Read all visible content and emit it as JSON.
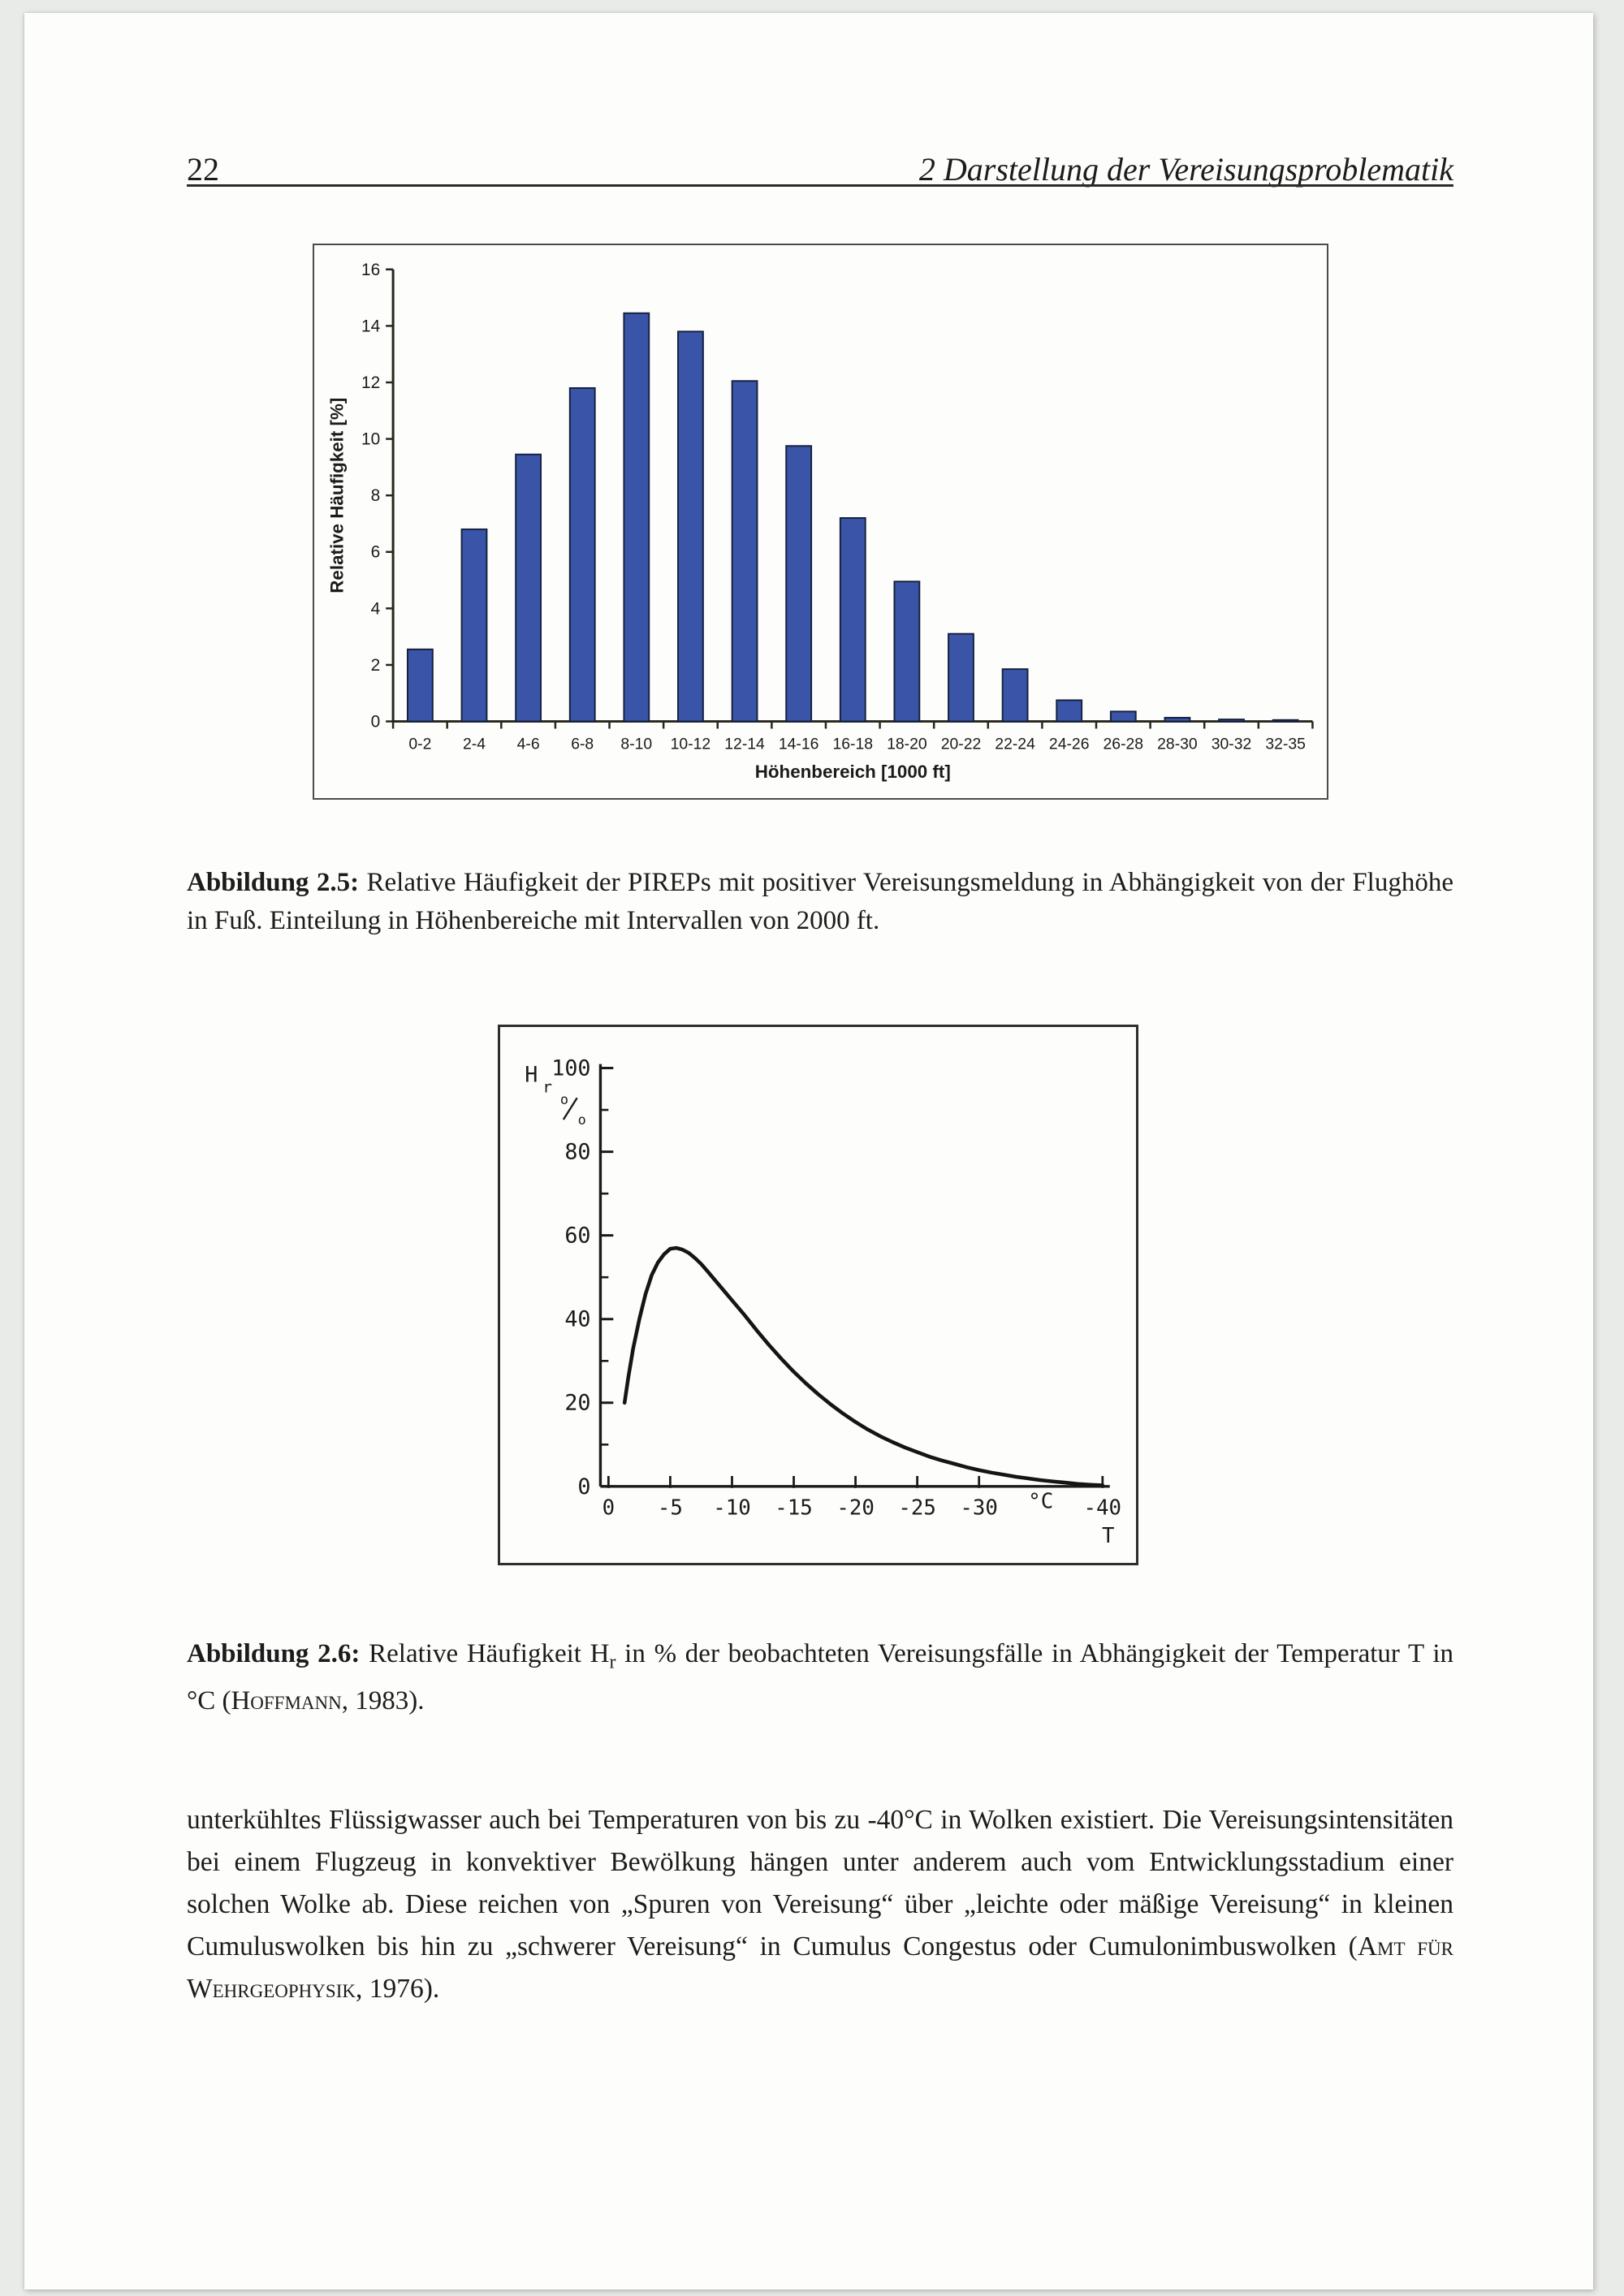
{
  "header": {
    "page_number": "22",
    "chapter_title": "2 Darstellung der Vereisungsproblematik"
  },
  "figures": {
    "fig25": {
      "label": "Abbildung 2.5:",
      "caption": "Relative Häufigkeit der PIREPs mit positiver Vereisungsmeldung in Abhängigkeit von der Flughöhe in Fuß. Einteilung in Höhenbereiche mit Intervallen von 2000 ft."
    },
    "fig26": {
      "label": "Abbildung 2.6:",
      "caption_pre": "Relative Häufigkeit H",
      "caption_sub": "r",
      "caption_mid": " in % der beobachteten Vereisungsfälle in Abhängigkeit der Temperatur T in °C (",
      "caption_smallcaps": "Hoffmann",
      "caption_post": ", 1983)."
    }
  },
  "paragraph": {
    "text_pre": "unterkühltes Flüssigwasser auch bei Temperaturen von bis zu -40°C in Wolken existiert. Die Vereisungsintensitäten bei einem Flugzeug in konvektiver Bewölkung hängen unter anderem auch vom Entwicklungsstadium einer solchen Wolke ab. Diese reichen von „Spuren von Vereisung“ über „leichte oder mäßige Vereisung“ in kleinen Cumuluswolken bis hin zu „schwerer Vereisung“ in Cumulus Congestus oder Cumulonimbuswolken (",
    "text_smallcaps": "Amt für Wehrgeophysik",
    "text_post": ", 1976)."
  },
  "chart_data": [
    {
      "id": "altitude-histogram",
      "type": "bar",
      "categories": [
        "0-2",
        "2-4",
        "4-6",
        "6-8",
        "8-10",
        "10-12",
        "12-14",
        "14-16",
        "16-18",
        "18-20",
        "20-22",
        "22-24",
        "24-26",
        "26-28",
        "28-30",
        "30-32",
        "32-35"
      ],
      "values": [
        2.55,
        6.8,
        9.45,
        11.8,
        14.45,
        13.8,
        12.05,
        9.75,
        7.2,
        4.95,
        3.1,
        1.85,
        0.75,
        0.35,
        0.13,
        0.07,
        0.05
      ],
      "xlabel": "Höhenbereich [1000 ft]",
      "ylabel": "Relative Häufigkeit [%]",
      "ylim": [
        0,
        16
      ],
      "yticks": [
        0,
        2,
        4,
        6,
        8,
        10,
        12,
        14,
        16
      ],
      "grid": false,
      "legend": false,
      "bar_color": "#3A55A8",
      "bar_edge_color": "#16213F"
    },
    {
      "id": "temperature-curve",
      "type": "line",
      "ylabel_main": "H",
      "ylabel_sub": "r",
      "ylabel_unit_top": "o",
      "ylabel_unit_bottom": "o",
      "xlabel_unit": "°C",
      "xlabel_variable": "T",
      "ylim": [
        0,
        100
      ],
      "xlim": [
        0,
        -40
      ],
      "yticks": [
        0,
        20,
        40,
        60,
        80,
        100
      ],
      "yticks_minor": [
        10,
        30,
        50,
        70,
        90
      ],
      "xticks": [
        0,
        -5,
        -10,
        -15,
        -20,
        -25,
        -30,
        -40
      ],
      "xtick_labels": [
        "0",
        "-5",
        "-10",
        "-15",
        "-20",
        "-25",
        "-30",
        "-40"
      ],
      "line_color": "#151515",
      "points": [
        [
          -1.3,
          20
        ],
        [
          -1.6,
          26
        ],
        [
          -2,
          33
        ],
        [
          -2.5,
          40
        ],
        [
          -3,
          46
        ],
        [
          -3.5,
          50.5
        ],
        [
          -4,
          53.5
        ],
        [
          -4.5,
          55.5
        ],
        [
          -5,
          56.8
        ],
        [
          -5.5,
          57
        ],
        [
          -6,
          56.6
        ],
        [
          -6.5,
          55.8
        ],
        [
          -7,
          54.6
        ],
        [
          -7.5,
          53.2
        ],
        [
          -8,
          51.5
        ],
        [
          -9,
          48
        ],
        [
          -10,
          44.5
        ],
        [
          -11,
          41
        ],
        [
          -12,
          37.3
        ],
        [
          -13,
          33.8
        ],
        [
          -14,
          30.5
        ],
        [
          -15,
          27.4
        ],
        [
          -16,
          24.6
        ],
        [
          -17,
          22
        ],
        [
          -18,
          19.6
        ],
        [
          -19,
          17.4
        ],
        [
          -20,
          15.4
        ],
        [
          -21,
          13.6
        ],
        [
          -22,
          12
        ],
        [
          -23,
          10.6
        ],
        [
          -24,
          9.3
        ],
        [
          -25,
          8.2
        ],
        [
          -26,
          7.1
        ],
        [
          -27,
          6.2
        ],
        [
          -28,
          5.4
        ],
        [
          -29,
          4.6
        ],
        [
          -30,
          3.9
        ],
        [
          -31,
          3.3
        ],
        [
          -32,
          2.8
        ],
        [
          -33,
          2.3
        ],
        [
          -34,
          1.9
        ],
        [
          -35,
          1.5
        ],
        [
          -36,
          1.2
        ],
        [
          -37,
          0.9
        ],
        [
          -38,
          0.6
        ],
        [
          -39,
          0.4
        ],
        [
          -40,
          0.25
        ]
      ]
    }
  ]
}
